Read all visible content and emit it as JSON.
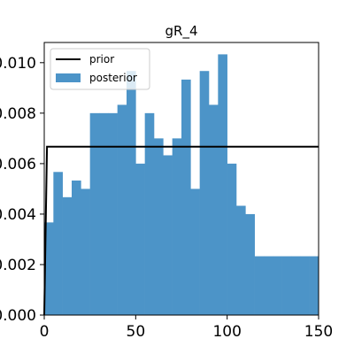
{
  "chart_data": {
    "type": "histogram",
    "title": "gR_4",
    "xlabel": "",
    "ylabel": "",
    "xlim": [
      0,
      150
    ],
    "ylim": [
      0,
      0.0108
    ],
    "xticks": [
      0,
      50,
      100,
      150
    ],
    "xtick_labels": [
      "0",
      "50",
      "100",
      "150"
    ],
    "yticks": [
      0,
      0.002,
      0.004,
      0.006,
      0.008,
      0.01
    ],
    "ytick_labels": [
      "0.000",
      "0.002",
      "0.004",
      "0.006",
      "0.008",
      "0.010"
    ],
    "grid": false,
    "legend": {
      "position": "top-left",
      "entries": [
        "prior",
        "posterior"
      ]
    },
    "colors": {
      "posterior": "#4c94c8",
      "prior": "#000000"
    },
    "series": [
      {
        "name": "posterior",
        "kind": "bars",
        "bin_edges": [
          0,
          5,
          10,
          15,
          20,
          25,
          30,
          35,
          40,
          45,
          50,
          55,
          60,
          65,
          70,
          75,
          80,
          85,
          90,
          95,
          100,
          105,
          110,
          115,
          120,
          125,
          130,
          135,
          140,
          145,
          150
        ],
        "values": [
          0.00367,
          0.00567,
          0.00467,
          0.00533,
          0.005,
          0.008,
          0.008,
          0.008,
          0.00833,
          0.00967,
          0.006,
          0.008,
          0.007,
          0.00633,
          0.007,
          0.00933,
          0.005,
          0.00967,
          0.00833,
          0.01033,
          0.006,
          0.00433,
          0.004,
          0.00233,
          0.00233,
          0.00233,
          0.00233,
          0.00233,
          0.00233,
          0.00233
        ]
      },
      {
        "name": "prior",
        "kind": "line",
        "x": [
          0,
          1.5,
          150
        ],
        "y": [
          0,
          0.00667,
          0.00667
        ]
      }
    ]
  }
}
